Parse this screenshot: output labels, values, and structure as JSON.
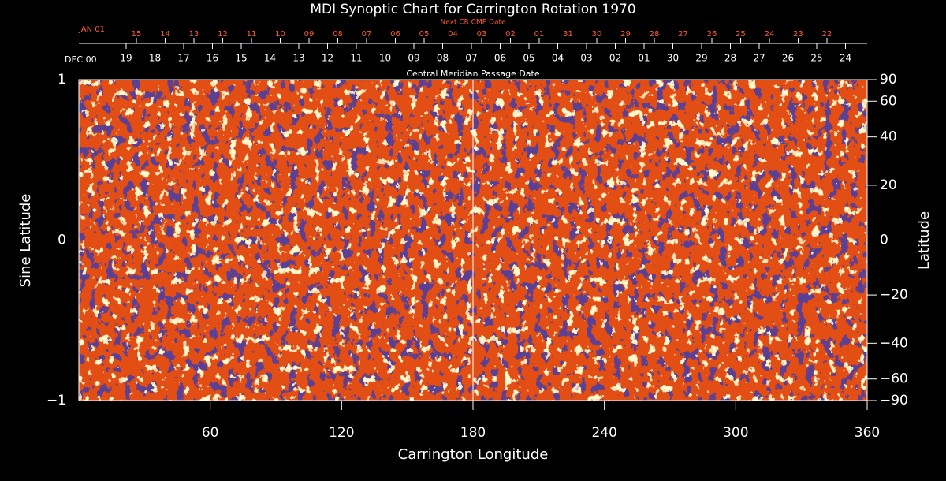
{
  "chart_data": {
    "type": "synoptic-map",
    "title": "MDI Synoptic Chart for Carrington Rotation 1970",
    "xlabel": "Carrington Longitude",
    "ylabel": "Sine Latitude",
    "y2label": "Latitude",
    "xlim": [
      0,
      360
    ],
    "xticks": [
      60,
      120,
      180,
      240,
      300,
      360
    ],
    "ylim": [
      -1,
      1
    ],
    "yticks": [
      {
        "value": -1,
        "label": "−1"
      },
      0,
      1
    ],
    "y2lim": [
      -90,
      90
    ],
    "y2scale": "sine",
    "y2ticks": [
      {
        "value": -90,
        "label": "−90"
      },
      {
        "value": -60,
        "label": "−60"
      },
      {
        "value": -40,
        "label": "−40"
      },
      {
        "value": -20,
        "label": "−20"
      },
      0,
      20,
      40,
      60,
      90
    ],
    "cmp_label": "Central Meridian Passage Date",
    "cmp_start": "DEC 00",
    "cmp_dates": [
      "19",
      "18",
      "17",
      "16",
      "15",
      "14",
      "13",
      "12",
      "11",
      "10",
      "09",
      "08",
      "07",
      "06",
      "05",
      "04",
      "03",
      "02",
      "01",
      "30",
      "29",
      "28",
      "27",
      "26",
      "25",
      "24"
    ],
    "next_label": "Next CR CMP Date",
    "next_start": "JAN 01",
    "next_dates": [
      "15",
      "14",
      "13",
      "12",
      "11",
      "10",
      "09",
      "08",
      "07",
      "06",
      "05",
      "04",
      "03",
      "02",
      "01",
      "31",
      "30",
      "29",
      "28",
      "27",
      "26",
      "25",
      "24",
      "23",
      "22"
    ]
  }
}
